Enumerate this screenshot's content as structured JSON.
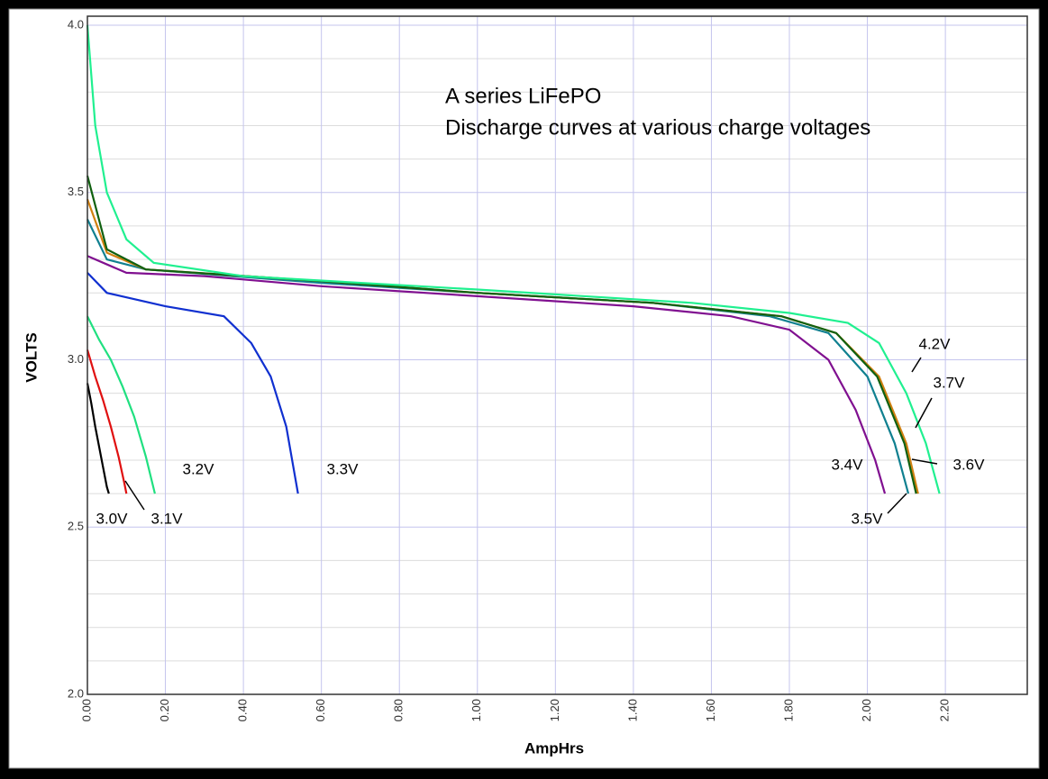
{
  "chart_data": {
    "type": "line",
    "title": "A series LiFePO",
    "subtitle": "Discharge curves at various charge voltages",
    "x_label": "AmpHrs",
    "y_label": "VOLTS",
    "xlim": [
      0,
      2.41
    ],
    "ylim": [
      2.0,
      4.0
    ],
    "xticks": [
      {
        "value": 0,
        "label": "0.00"
      },
      {
        "value": 0.2,
        "label": "0.20"
      },
      {
        "value": 0.4,
        "label": "0.40"
      },
      {
        "value": 0.6,
        "label": "0.60"
      },
      {
        "value": 0.8,
        "label": "0.80"
      },
      {
        "value": 1.0,
        "label": "1.00"
      },
      {
        "value": 1.2,
        "label": "1.20"
      },
      {
        "value": 1.4,
        "label": "1.40"
      },
      {
        "value": 1.6,
        "label": "1.60"
      },
      {
        "value": 1.8,
        "label": "1.80"
      },
      {
        "value": 2.0,
        "label": "2.00"
      },
      {
        "value": 2.2,
        "label": "2.20"
      }
    ],
    "yticks": [
      {
        "value": 2.0,
        "label": "2.0"
      },
      {
        "value": 2.5,
        "label": "2.5"
      },
      {
        "value": 3.0,
        "label": "3.0"
      },
      {
        "value": 3.5,
        "label": "3.5"
      },
      {
        "value": 4.0,
        "label": "4.0"
      }
    ],
    "yminorticks": [
      2.1,
      2.2,
      2.3,
      2.4,
      2.6,
      2.7,
      2.8,
      2.9,
      3.1,
      3.2,
      3.3,
      3.4,
      3.6,
      3.7,
      3.8,
      3.9
    ],
    "grid": true,
    "series": [
      {
        "name": "3.0V",
        "color": "#000000",
        "x": [
          0,
          0.01,
          0.02,
          0.03,
          0.04,
          0.05,
          0.055
        ],
        "values": [
          2.93,
          2.87,
          2.8,
          2.74,
          2.68,
          2.62,
          2.6
        ]
      },
      {
        "name": "3.1V",
        "color": "#e01010",
        "x": [
          0,
          0.02,
          0.04,
          0.06,
          0.08,
          0.095,
          0.1
        ],
        "values": [
          3.03,
          2.95,
          2.88,
          2.8,
          2.71,
          2.63,
          2.6
        ]
      },
      {
        "name": "3.2V",
        "color": "#20e080",
        "x": [
          0,
          0.03,
          0.06,
          0.09,
          0.12,
          0.15,
          0.173
        ],
        "values": [
          3.13,
          3.06,
          3.0,
          2.92,
          2.83,
          2.71,
          2.6
        ]
      },
      {
        "name": "3.3V",
        "color": "#1030d0",
        "x": [
          0,
          0.05,
          0.2,
          0.35,
          0.42,
          0.47,
          0.51,
          0.54
        ],
        "values": [
          3.26,
          3.2,
          3.16,
          3.13,
          3.05,
          2.95,
          2.8,
          2.6
        ]
      },
      {
        "name": "3.4V",
        "color": "#801090",
        "x": [
          0,
          0.1,
          0.3,
          0.6,
          1.0,
          1.4,
          1.65,
          1.8,
          1.9,
          1.97,
          2.02,
          2.045
        ],
        "values": [
          3.31,
          3.26,
          3.25,
          3.22,
          3.19,
          3.16,
          3.13,
          3.09,
          3.0,
          2.85,
          2.7,
          2.6
        ]
      },
      {
        "name": "3.5V",
        "color": "#108090",
        "x": [
          0,
          0.05,
          0.15,
          0.6,
          1.0,
          1.45,
          1.75,
          1.9,
          2.0,
          2.07,
          2.105
        ],
        "values": [
          3.42,
          3.3,
          3.27,
          3.23,
          3.2,
          3.17,
          3.13,
          3.08,
          2.95,
          2.75,
          2.6
        ]
      },
      {
        "name": "3.6V",
        "color": "#d08010",
        "x": [
          0,
          0.05,
          0.15,
          0.6,
          1.0,
          1.45,
          1.78,
          1.92,
          2.03,
          2.1,
          2.13
        ],
        "values": [
          3.48,
          3.32,
          3.27,
          3.235,
          3.2,
          3.17,
          3.13,
          3.08,
          2.95,
          2.75,
          2.6
        ]
      },
      {
        "name": "3.7V",
        "color": "#106010",
        "x": [
          0,
          0.05,
          0.15,
          0.6,
          1.0,
          1.45,
          1.78,
          1.92,
          2.025,
          2.095,
          2.125
        ],
        "values": [
          3.55,
          3.33,
          3.27,
          3.235,
          3.2,
          3.17,
          3.13,
          3.08,
          2.95,
          2.75,
          2.6
        ]
      },
      {
        "name": "4.2V",
        "color": "#20f090",
        "x": [
          0,
          0.02,
          0.05,
          0.1,
          0.17,
          0.4,
          1.0,
          1.55,
          1.8,
          1.95,
          2.03,
          2.1,
          2.15,
          2.185
        ],
        "values": [
          4.0,
          3.7,
          3.5,
          3.36,
          3.29,
          3.25,
          3.21,
          3.17,
          3.14,
          3.11,
          3.05,
          2.9,
          2.75,
          2.6
        ]
      }
    ]
  }
}
